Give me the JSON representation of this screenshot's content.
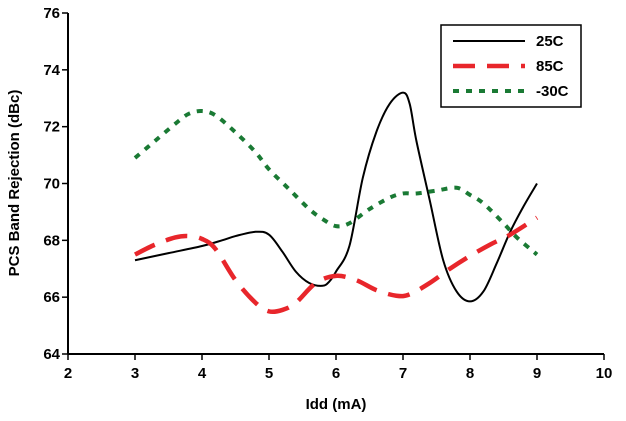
{
  "chart_data": {
    "type": "line",
    "title": "",
    "xlabel": "Idd (mA)",
    "ylabel": "PCS Band Rejection (dBc)",
    "xlim": [
      2,
      10
    ],
    "ylim": [
      64,
      76
    ],
    "x_ticks": [
      "2",
      "3",
      "4",
      "5",
      "6",
      "7",
      "8",
      "9",
      "10"
    ],
    "y_ticks": [
      "64",
      "66",
      "68",
      "70",
      "72",
      "74",
      "76"
    ],
    "grid": false,
    "legend_position": "top-right",
    "series": [
      {
        "name": "25C",
        "color": "#000000",
        "dash": "solid",
        "x": [
          3,
          3.5,
          4,
          4.3,
          4.5,
          4.8,
          5,
          5.2,
          5.4,
          5.6,
          5.8,
          5.9,
          6,
          6.2,
          6.4,
          6.6,
          6.8,
          7,
          7.1,
          7.2,
          7.4,
          7.6,
          7.8,
          8,
          8.2,
          8.4,
          8.6,
          8.8,
          9
        ],
        "y": [
          67.3,
          67.55,
          67.8,
          68.0,
          68.15,
          68.3,
          68.2,
          67.6,
          66.9,
          66.5,
          66.4,
          66.55,
          66.9,
          67.8,
          70.2,
          71.8,
          72.8,
          73.2,
          72.8,
          71.5,
          69.4,
          67.3,
          66.2,
          65.85,
          66.2,
          67.2,
          68.3,
          69.2,
          70.0
        ]
      },
      {
        "name": "85C",
        "color": "#e8262b",
        "dash": "long-dash",
        "x": [
          3,
          3.3,
          3.6,
          3.8,
          4,
          4.2,
          4.5,
          4.8,
          5,
          5.2,
          5.4,
          5.7,
          6,
          6.3,
          6.6,
          6.9,
          7.1,
          7.4,
          7.7,
          8,
          8.3,
          8.6,
          9
        ],
        "y": [
          67.5,
          67.85,
          68.1,
          68.15,
          68.05,
          67.7,
          66.6,
          65.8,
          65.5,
          65.55,
          65.8,
          66.5,
          66.75,
          66.6,
          66.25,
          66.05,
          66.1,
          66.5,
          67.0,
          67.45,
          67.85,
          68.2,
          68.8
        ]
      },
      {
        "name": "-30C",
        "color": "#1a7a34",
        "dash": "short-dash",
        "x": [
          3,
          3.3,
          3.6,
          3.8,
          4,
          4.2,
          4.5,
          4.8,
          5,
          5.3,
          5.6,
          5.8,
          6,
          6.2,
          6.5,
          6.8,
          7,
          7.2,
          7.5,
          7.8,
          8,
          8.2,
          8.5,
          8.7,
          9
        ],
        "y": [
          70.9,
          71.5,
          72.1,
          72.45,
          72.55,
          72.4,
          71.8,
          71.1,
          70.5,
          69.8,
          69.1,
          68.75,
          68.5,
          68.6,
          69.1,
          69.5,
          69.65,
          69.65,
          69.75,
          69.85,
          69.6,
          69.3,
          68.6,
          68.1,
          67.5
        ]
      }
    ]
  }
}
